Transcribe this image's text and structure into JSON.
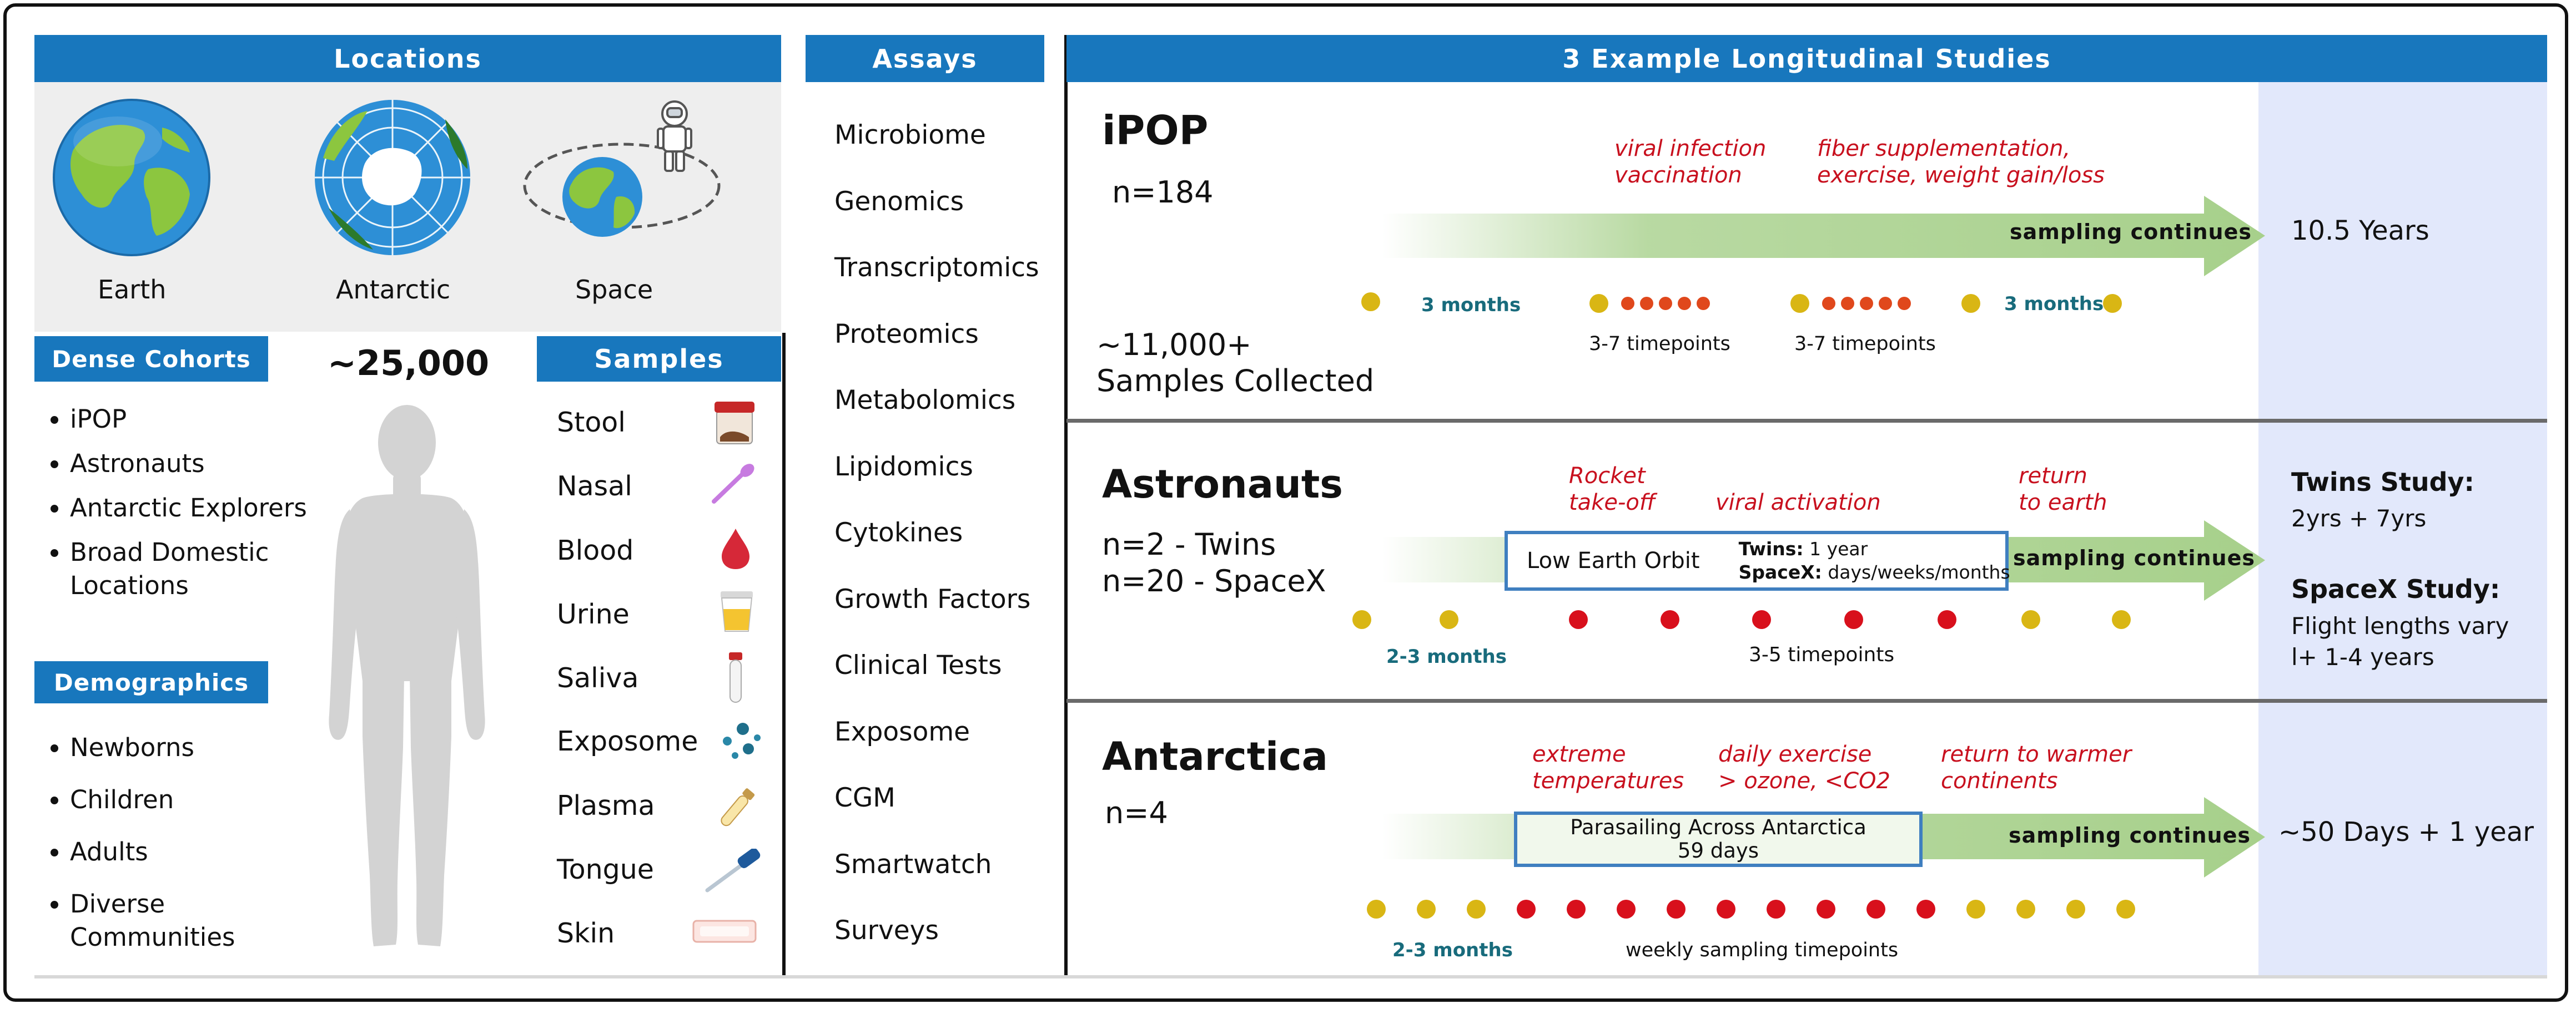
{
  "headers": {
    "locations": "Locations",
    "assays": "Assays",
    "studies": "3 Example Longitudinal Studies",
    "dense_cohorts": "Dense Cohorts",
    "samples": "Samples",
    "demographics": "Demographics"
  },
  "locations": [
    {
      "label": "Earth",
      "icon": "earth-globe-icon"
    },
    {
      "label": "Antarctic",
      "icon": "antarctic-globe-icon"
    },
    {
      "label": "Space",
      "icon": "space-orbit-icon"
    }
  ],
  "total_count": "~25,000",
  "dense_cohorts": [
    "iPOP",
    "Astronauts",
    "Antarctic Explorers",
    "Broad Domestic Locations"
  ],
  "demographics": [
    "Newborns",
    "Children",
    "Adults",
    "Diverse Communities"
  ],
  "samples": [
    {
      "label": "Stool",
      "icon": "stool-container-icon"
    },
    {
      "label": "Nasal",
      "icon": "nasal-swab-icon"
    },
    {
      "label": "Blood",
      "icon": "blood-drop-icon"
    },
    {
      "label": "Urine",
      "icon": "urine-cup-icon"
    },
    {
      "label": "Saliva",
      "icon": "saliva-tube-icon"
    },
    {
      "label": "Exposome",
      "icon": "exposome-particles-icon"
    },
    {
      "label": "Plasma",
      "icon": "plasma-tube-icon"
    },
    {
      "label": "Tongue",
      "icon": "tongue-swab-icon"
    },
    {
      "label": "Skin",
      "icon": "skin-patch-icon"
    }
  ],
  "assays": [
    "Microbiome",
    "Genomics",
    "Transcriptomics",
    "Proteomics",
    "Metabolomics",
    "Lipidomics",
    "Cytokines",
    "Growth Factors",
    "Clinical Tests",
    "Exposome",
    "CGM",
    "Smartwatch",
    "Surveys"
  ],
  "studies": {
    "ipop": {
      "title": "iPOP",
      "n": "n=184",
      "collected_1": "~11,000+",
      "collected_2": "Samples Collected",
      "event_1": "viral infection",
      "event_2": "vaccination",
      "event_3": "fiber supplementation,",
      "event_4": "exercise, weight gain/loss",
      "arrow_label": "sampling continues",
      "interval_1": "3 months",
      "interval_2": "3 months",
      "timepoints_1": "3-7 timepoints",
      "timepoints_2": "3-7 timepoints",
      "duration": "10.5 Years"
    },
    "astronauts": {
      "title": "Astronauts",
      "n_1": "n=2 - Twins",
      "n_2": "n=20 - SpaceX",
      "event_1a": "Rocket",
      "event_1b": "take-off",
      "event_2": "viral activation",
      "event_3a": "return",
      "event_3b": "to earth",
      "box_title": "Low Earth Orbit",
      "box_twins_label": "Twins:",
      "box_twins_value": "1 year",
      "box_spacex_label": "SpaceX:",
      "box_spacex_value": "days/weeks/months",
      "arrow_label": "sampling continues",
      "interval": "2-3 months",
      "timepoints": "3-5 timepoints",
      "result_1_title": "Twins Study:",
      "result_1_value": "2yrs + 7yrs",
      "result_2_title": "SpaceX Study:",
      "result_2_value_1": "Flight lengths vary",
      "result_2_value_2": "l+ 1-4 years"
    },
    "antarctica": {
      "title": "Antarctica",
      "n": "n=4",
      "event_1a": "extreme",
      "event_1b": "temperatures",
      "event_2a": "daily exercise",
      "event_2b": "> ozone, <CO2",
      "event_3a": "return to warmer",
      "event_3b": "continents",
      "box_line_1": "Parasailing Across Antarctica",
      "box_line_2": "59 days",
      "arrow_label": "sampling continues",
      "interval": "2-3 months",
      "timepoints": "weekly sampling timepoints",
      "duration": "~50 Days + 1 year"
    }
  },
  "colors": {
    "header_blue": "#1877bd",
    "event_red": "#c8101e",
    "interval_teal": "#186b7c",
    "dot_yellow": "#d9b614",
    "dot_orange": "#e0481c",
    "dot_red": "#d8101c",
    "arrow_green": "#a7d08b",
    "result_panel": "#e2e8fb"
  }
}
